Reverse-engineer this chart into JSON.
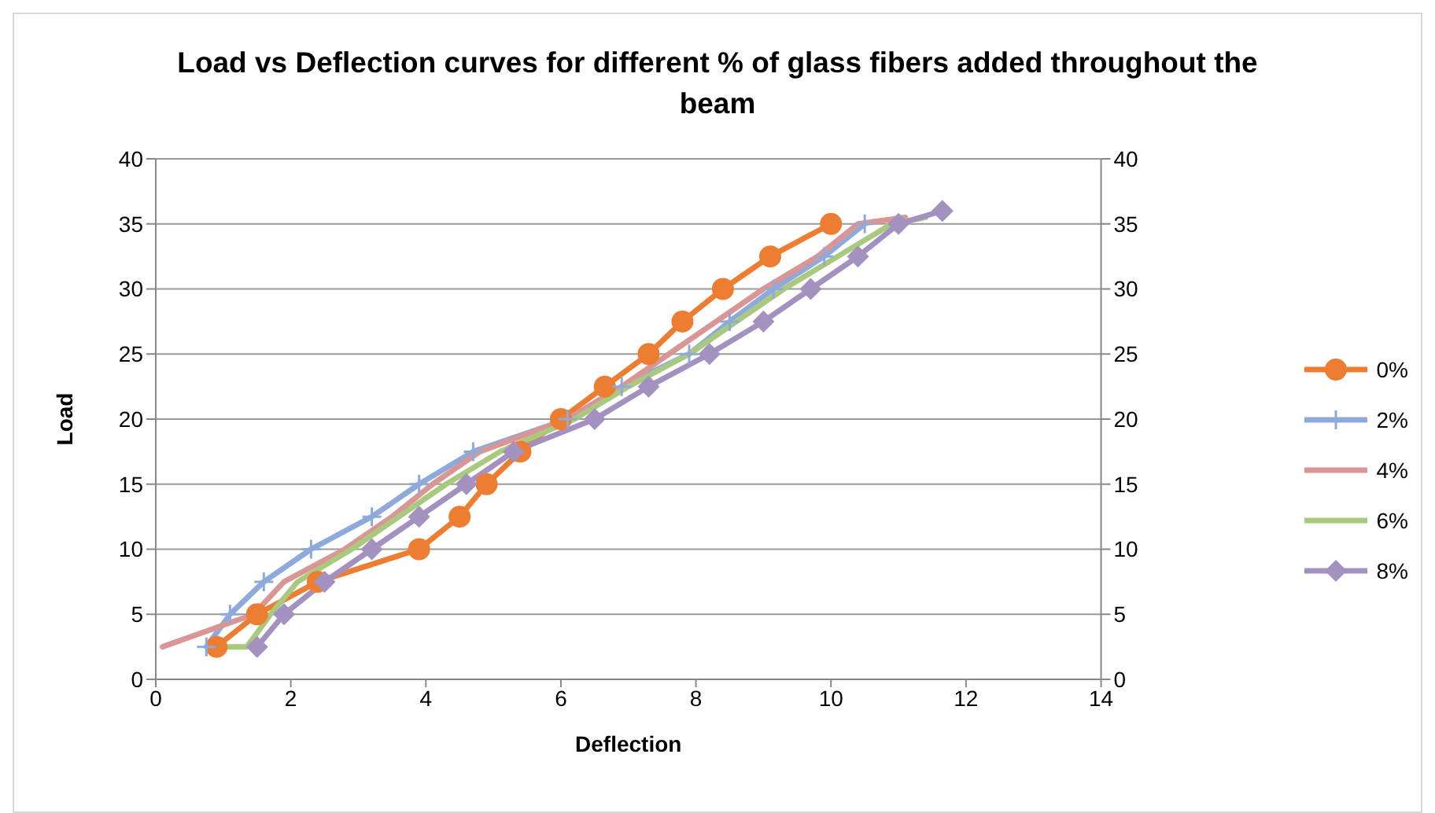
{
  "chart_data": {
    "type": "line",
    "title": "Load vs Deflection curves for different % of glass fibers added throughout the beam",
    "xlabel": "Deflection",
    "ylabel": "Load",
    "xlim": [
      0,
      14
    ],
    "xticks": [
      0,
      2,
      4,
      6,
      8,
      10,
      12,
      14
    ],
    "ylim": [
      0,
      40
    ],
    "yticks": [
      0,
      5,
      10,
      15,
      20,
      25,
      30,
      35,
      40
    ],
    "y2lim": [
      0,
      40
    ],
    "y2ticks": [
      0,
      5,
      10,
      15,
      20,
      25,
      30,
      35,
      40
    ],
    "grid": "y",
    "legend": "right",
    "series": [
      {
        "name": "0%",
        "color": "#ed7d31",
        "marker": "circle",
        "x": [
          0.9,
          1.5,
          2.4,
          3.9,
          4.5,
          4.9,
          5.4,
          6.0,
          6.65,
          7.3,
          7.8,
          8.4,
          9.1,
          10.0
        ],
        "values": [
          2.5,
          5,
          7.5,
          10,
          12.5,
          15,
          17.5,
          20,
          22.5,
          25,
          27.5,
          30,
          32.5,
          35
        ]
      },
      {
        "name": "2%",
        "color": "#8eaadb",
        "marker": "cross",
        "x": [
          0.75,
          1.1,
          1.6,
          2.3,
          3.2,
          3.9,
          4.7,
          6.1,
          6.9,
          7.9,
          8.5,
          9.15,
          9.9,
          10.5
        ],
        "values": [
          2.5,
          5,
          7.5,
          10,
          12.5,
          15,
          17.5,
          20,
          22.5,
          25,
          27.5,
          30,
          32.5,
          35
        ]
      },
      {
        "name": "4%",
        "color": "#d99694",
        "marker": "none",
        "x": [
          0.1,
          1.45,
          1.9,
          2.8,
          3.5,
          4.1,
          4.8,
          6.1,
          6.9,
          7.6,
          8.3,
          9.0,
          9.8,
          10.4,
          11.1
        ],
        "values": [
          2.5,
          5,
          7.5,
          10,
          12.5,
          15,
          17.5,
          20,
          22.5,
          25,
          27.5,
          30,
          32.5,
          35,
          35.5
        ]
      },
      {
        "name": "6%",
        "color": "#a9c97f",
        "marker": "none",
        "x": [
          1.0,
          1.35,
          1.7,
          2.1,
          2.9,
          3.6,
          4.3,
          5.1,
          6.2,
          7.0,
          7.9,
          8.6,
          9.3,
          10.1,
          10.9,
          11.4
        ],
        "values": [
          2.5,
          2.5,
          5,
          7.5,
          10,
          12.5,
          15,
          17.5,
          20,
          22.5,
          25,
          27.5,
          30,
          32.5,
          35,
          35.5
        ]
      },
      {
        "name": "8%",
        "color": "#a391c0",
        "marker": "diamond",
        "x": [
          1.5,
          1.9,
          2.5,
          3.2,
          3.9,
          4.6,
          5.3,
          6.5,
          7.3,
          8.2,
          9.0,
          9.7,
          10.4,
          11.0,
          11.65
        ],
        "values": [
          2.5,
          5,
          7.5,
          10,
          12.5,
          15,
          17.5,
          20,
          22.5,
          25,
          27.5,
          30,
          32.5,
          35,
          36
        ]
      }
    ]
  }
}
